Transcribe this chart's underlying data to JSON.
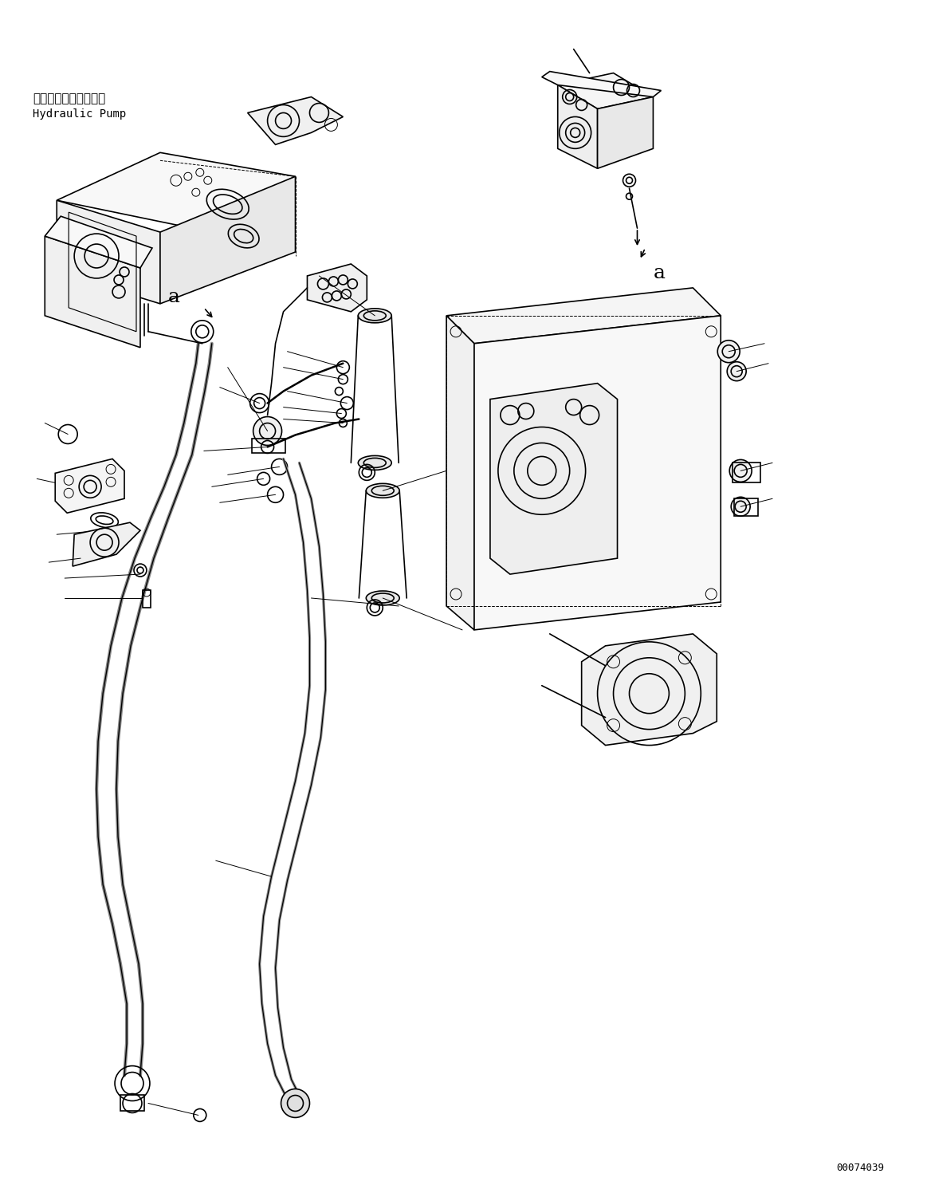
{
  "background_color": "#ffffff",
  "diagram_id": "00074039",
  "label_japanese": "ハイドロリックポンプ",
  "label_english": "Hydraulic Pump",
  "fig_width": 11.63,
  "fig_height": 14.91,
  "line_color": "#000000",
  "lw": 1.2,
  "tlw": 0.7,
  "gray": "#aaaaaa"
}
